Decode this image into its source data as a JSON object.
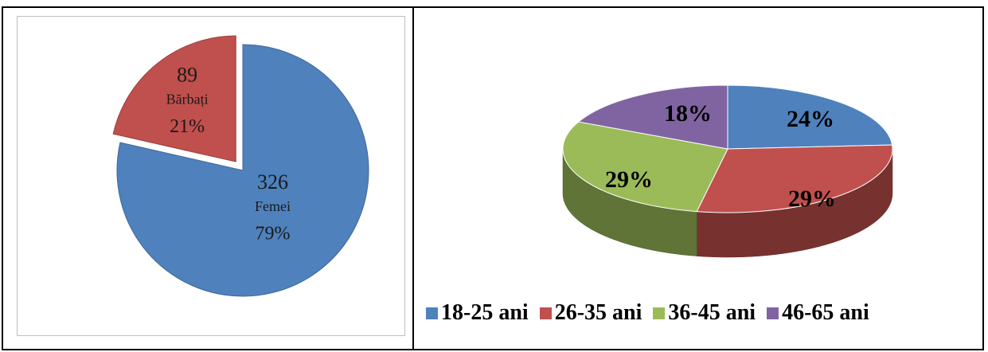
{
  "chart_data": [
    {
      "type": "pie",
      "title": "",
      "slices": [
        {
          "count": "326",
          "label": "Femei",
          "percent": "79%",
          "value": 326,
          "color": "#4f81bd",
          "exploded": false
        },
        {
          "count": "89",
          "label": "Bărbați",
          "percent": "21%",
          "value": 89,
          "color": "#c0504d",
          "exploded": true
        }
      ]
    },
    {
      "type": "pie",
      "style": "3d",
      "title": "",
      "legend_position": "bottom",
      "slices": [
        {
          "label": "18-25 ani",
          "percent": "24%",
          "value": 24,
          "color": "#4f81bd"
        },
        {
          "label": "26-35 ani",
          "percent": "29%",
          "value": 29,
          "color": "#c0504d"
        },
        {
          "label": "36-45 ani",
          "percent": "29%",
          "value": 29,
          "color": "#9bbb59"
        },
        {
          "label": "46-65 ani",
          "percent": "18%",
          "value": 18,
          "color": "#8064a2"
        }
      ]
    }
  ]
}
